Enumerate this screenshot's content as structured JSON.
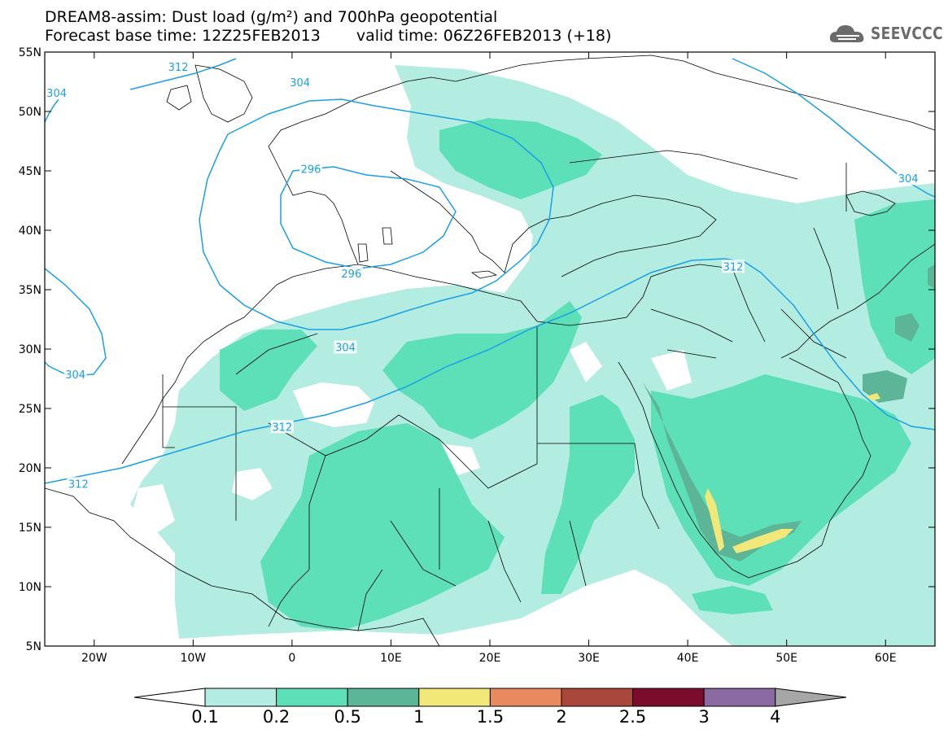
{
  "header": {
    "title_line1": "DREAM8-assim: Dust load (g/m²) and 700hPa geopotential",
    "title_line2_base": "Forecast base time: 12Z25FEB2013",
    "title_line2_valid": "valid time: 06Z26FEB2013 (+18)",
    "logo_text": "SEEVCCC"
  },
  "map": {
    "extent": {
      "lon_min": -25,
      "lon_max": 65,
      "lat_min": 5,
      "lat_max": 55
    },
    "lat_ticks": [
      {
        "value": 55,
        "label": "55N"
      },
      {
        "value": 50,
        "label": "50N"
      },
      {
        "value": 45,
        "label": "45N"
      },
      {
        "value": 40,
        "label": "40N"
      },
      {
        "value": 35,
        "label": "35N"
      },
      {
        "value": 30,
        "label": "30N"
      },
      {
        "value": 25,
        "label": "25N"
      },
      {
        "value": 20,
        "label": "20N"
      },
      {
        "value": 15,
        "label": "15N"
      },
      {
        "value": 10,
        "label": "10N"
      },
      {
        "value": 5,
        "label": "5N"
      }
    ],
    "lon_ticks": [
      {
        "value": -20,
        "label": "20W"
      },
      {
        "value": -10,
        "label": "10W"
      },
      {
        "value": 0,
        "label": "0"
      },
      {
        "value": 10,
        "label": "10E"
      },
      {
        "value": 20,
        "label": "20E"
      },
      {
        "value": 30,
        "label": "30E"
      },
      {
        "value": 40,
        "label": "40E"
      },
      {
        "value": 50,
        "label": "50E"
      },
      {
        "value": 60,
        "label": "60E"
      }
    ],
    "geopotential_contour_color": "#1aa0e6",
    "geopotential_contour_labels": [
      {
        "text": "312",
        "lon": -11.5,
        "lat": 53.7
      },
      {
        "text": "304",
        "lon": -23.8,
        "lat": 51.5
      },
      {
        "text": "304",
        "lon": 0.8,
        "lat": 52.4
      },
      {
        "text": "296",
        "lon": 1.9,
        "lat": 45.1
      },
      {
        "text": "296",
        "lon": 6.0,
        "lat": 36.3
      },
      {
        "text": "304",
        "lon": 5.4,
        "lat": 30.1
      },
      {
        "text": "304",
        "lon": -21.9,
        "lat": 27.8
      },
      {
        "text": "312",
        "lon": -1.0,
        "lat": 23.4
      },
      {
        "text": "312",
        "lon": -21.6,
        "lat": 18.6
      },
      {
        "text": "312",
        "lon": 44.6,
        "lat": 36.9
      },
      {
        "text": "304",
        "lon": 62.3,
        "lat": 44.3
      }
    ]
  },
  "colorbar": {
    "colors": [
      "#ffffff",
      "#b3ece1",
      "#5ddfb8",
      "#5cb596",
      "#f2e87a",
      "#e9895f",
      "#a9473a",
      "#7b0c2c",
      "#8a6aa0",
      "#a6a6a6"
    ],
    "tick_labels": [
      "0.1",
      "0.2",
      "0.5",
      "1",
      "1.5",
      "2",
      "2.5",
      "3",
      "4"
    ]
  }
}
